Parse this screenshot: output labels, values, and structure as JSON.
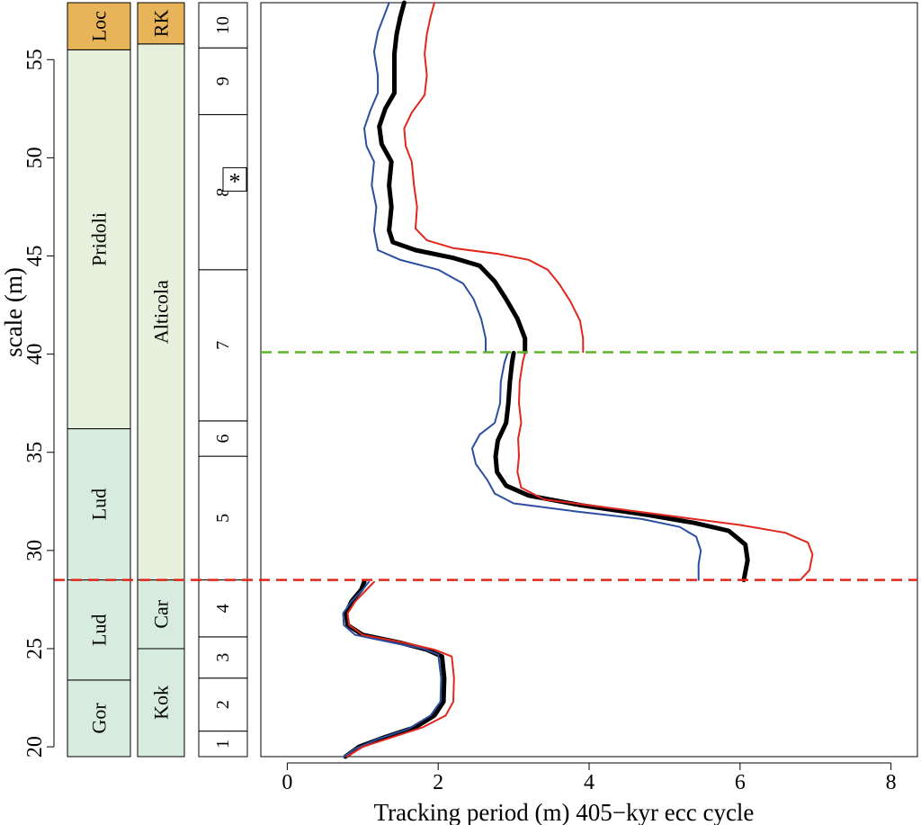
{
  "colors": {
    "loc_box": "#e7b45a",
    "pridoli_box": "#e6f0dd",
    "ludlow_box": "#d7ebdf",
    "trend_black": "#000000",
    "trend_blue": "#2b4ea0",
    "trend_red": "#e1261c",
    "line_red_dashed": "#e1261c",
    "line_green_dashed": "#5fb32d"
  },
  "chart_data": {
    "type": "line",
    "xlabel": "Tracking period (m) 405−kyr ecc cycle",
    "ylabel": "scale (m)",
    "xlim": [
      -0.35,
      8.35
    ],
    "ylim": [
      19.5,
      57.9
    ],
    "xticks": [
      "0",
      "2",
      "4",
      "6",
      "8"
    ],
    "yticks": [
      "20",
      "25",
      "30",
      "35",
      "40",
      "45",
      "50",
      "55"
    ],
    "xtick_values": [
      0,
      2,
      4,
      6,
      8
    ],
    "ytick_values": [
      20,
      25,
      30,
      35,
      40,
      45,
      50,
      55
    ],
    "grid": false,
    "reference_lines": [
      {
        "y": 28.5,
        "color": "red",
        "style": "dashed"
      },
      {
        "y": 40.1,
        "color": "green",
        "style": "dashed"
      }
    ],
    "columns": [
      {
        "units": [
          {
            "label": "Gor",
            "bottom": 19.5,
            "top": 23.4,
            "fill": "ludlow_box"
          },
          {
            "label": "Lud",
            "bottom": 23.4,
            "top": 28.5,
            "fill": "ludlow_box"
          },
          {
            "label": "Lud",
            "bottom": 28.5,
            "top": 36.2,
            "fill": "ludlow_box"
          },
          {
            "label": "Pridoli",
            "bottom": 36.2,
            "top": 55.5,
            "fill": "pridoli_box"
          },
          {
            "label": "Loc",
            "bottom": 55.5,
            "top": 57.9,
            "fill": "loc_box"
          }
        ]
      },
      {
        "units": [
          {
            "label": "Kok",
            "bottom": 19.5,
            "top": 25.0,
            "fill": "ludlow_box"
          },
          {
            "label": "Car",
            "bottom": 25.0,
            "top": 28.5,
            "fill": "ludlow_box"
          },
          {
            "label": "Alticola",
            "bottom": 28.5,
            "top": 55.8,
            "fill": "pridoli_box"
          },
          {
            "label": "RK",
            "bottom": 55.8,
            "top": 57.9,
            "fill": "loc_box"
          }
        ]
      },
      {
        "units": [
          {
            "label": "1",
            "bottom": 19.5,
            "top": 20.8
          },
          {
            "label": "2",
            "bottom": 20.8,
            "top": 23.5
          },
          {
            "label": "3",
            "bottom": 23.5,
            "top": 25.6
          },
          {
            "label": "4",
            "bottom": 25.6,
            "top": 28.5
          },
          {
            "label": "5",
            "bottom": 28.5,
            "top": 34.8
          },
          {
            "label": "6",
            "bottom": 34.8,
            "top": 36.6
          },
          {
            "label": "7",
            "bottom": 36.6,
            "top": 44.3
          },
          {
            "label": "8",
            "bottom": 44.3,
            "top": 52.2
          },
          {
            "label": "9",
            "bottom": 52.2,
            "top": 55.6
          },
          {
            "label": "10",
            "bottom": 55.6,
            "top": 57.9
          }
        ],
        "marker": {
          "label": "*",
          "y": 48.9
        }
      }
    ],
    "series": [
      {
        "color": "black",
        "width": 5,
        "segments": [
          [
            [
              0.77,
              19.5
            ],
            [
              0.95,
              20.0
            ],
            [
              1.3,
              20.5
            ],
            [
              1.7,
              21.0
            ],
            [
              1.95,
              21.6
            ],
            [
              2.07,
              22.3
            ],
            [
              2.08,
              23.5
            ],
            [
              2.05,
              24.6
            ],
            [
              1.85,
              24.95
            ],
            [
              1.5,
              25.3
            ],
            [
              1.0,
              25.7
            ],
            [
              0.8,
              26.2
            ],
            [
              0.78,
              26.8
            ],
            [
              0.85,
              27.4
            ],
            [
              0.98,
              28.0
            ],
            [
              1.02,
              28.4
            ]
          ],
          [
            [
              6.05,
              28.5
            ],
            [
              6.1,
              29.5
            ],
            [
              6.07,
              30.3
            ],
            [
              5.85,
              31.0
            ],
            [
              5.4,
              31.4
            ],
            [
              4.8,
              31.8
            ],
            [
              3.9,
              32.3
            ],
            [
              3.2,
              32.8
            ],
            [
              2.9,
              33.3
            ],
            [
              2.78,
              34.0
            ],
            [
              2.76,
              34.8
            ],
            [
              2.79,
              35.6
            ],
            [
              2.9,
              36.5
            ],
            [
              2.93,
              37.5
            ],
            [
              2.95,
              38.6
            ],
            [
              2.98,
              39.6
            ],
            [
              3.0,
              40.05
            ]
          ],
          [
            [
              3.15,
              40.1
            ],
            [
              3.15,
              40.8
            ],
            [
              3.05,
              41.8
            ],
            [
              2.9,
              42.8
            ],
            [
              2.75,
              43.7
            ],
            [
              2.55,
              44.5
            ],
            [
              2.2,
              44.9
            ],
            [
              1.7,
              45.3
            ],
            [
              1.4,
              45.7
            ],
            [
              1.35,
              46.3
            ],
            [
              1.38,
              47.5
            ],
            [
              1.35,
              48.6
            ],
            [
              1.38,
              49.8
            ],
            [
              1.25,
              50.7
            ],
            [
              1.22,
              51.6
            ],
            [
              1.3,
              52.5
            ],
            [
              1.42,
              53.3
            ],
            [
              1.42,
              54.2
            ],
            [
              1.42,
              55.3
            ],
            [
              1.45,
              56.3
            ],
            [
              1.5,
              57.2
            ],
            [
              1.55,
              57.9
            ]
          ]
        ]
      },
      {
        "color": "blue",
        "width": 2,
        "segments": [
          [
            [
              0.75,
              19.5
            ],
            [
              0.9,
              19.9
            ],
            [
              1.2,
              20.4
            ],
            [
              1.6,
              20.9
            ],
            [
              1.9,
              21.6
            ],
            [
              2.03,
              22.3
            ],
            [
              2.04,
              23.5
            ],
            [
              2.0,
              24.7
            ],
            [
              1.8,
              25.0
            ],
            [
              1.4,
              25.3
            ],
            [
              0.9,
              25.7
            ],
            [
              0.75,
              26.2
            ],
            [
              0.74,
              26.8
            ],
            [
              0.85,
              27.4
            ],
            [
              1.0,
              28.0
            ],
            [
              1.08,
              28.4
            ]
          ],
          [
            [
              5.45,
              28.5
            ],
            [
              5.45,
              29.3
            ],
            [
              5.48,
              30.0
            ],
            [
              5.42,
              30.7
            ],
            [
              5.2,
              31.2
            ],
            [
              4.7,
              31.6
            ],
            [
              3.8,
              32.0
            ],
            [
              3.0,
              32.4
            ],
            [
              2.75,
              32.9
            ],
            [
              2.65,
              33.6
            ],
            [
              2.5,
              34.4
            ],
            [
              2.45,
              35.2
            ],
            [
              2.55,
              35.9
            ],
            [
              2.75,
              36.5
            ],
            [
              2.82,
              37.5
            ],
            [
              2.83,
              38.6
            ],
            [
              2.88,
              39.6
            ],
            [
              2.92,
              40.05
            ]
          ],
          [
            [
              2.63,
              40.1
            ],
            [
              2.63,
              40.8
            ],
            [
              2.57,
              41.8
            ],
            [
              2.47,
              42.8
            ],
            [
              2.33,
              43.6
            ],
            [
              2.0,
              44.3
            ],
            [
              1.5,
              44.8
            ],
            [
              1.2,
              45.3
            ],
            [
              1.15,
              46.3
            ],
            [
              1.18,
              47.5
            ],
            [
              1.12,
              48.6
            ],
            [
              1.15,
              49.8
            ],
            [
              1.05,
              50.6
            ],
            [
              1.02,
              51.5
            ],
            [
              1.1,
              52.4
            ],
            [
              1.2,
              53.3
            ],
            [
              1.2,
              54.2
            ],
            [
              1.15,
              55.4
            ],
            [
              1.2,
              56.4
            ],
            [
              1.28,
              57.2
            ],
            [
              1.35,
              57.9
            ]
          ]
        ]
      },
      {
        "color": "red",
        "width": 2,
        "segments": [
          [
            [
              0.79,
              19.5
            ],
            [
              1.0,
              20.0
            ],
            [
              1.4,
              20.5
            ],
            [
              1.8,
              21.0
            ],
            [
              2.1,
              21.6
            ],
            [
              2.2,
              22.3
            ],
            [
              2.21,
              23.5
            ],
            [
              2.18,
              24.6
            ],
            [
              1.95,
              24.95
            ],
            [
              1.55,
              25.3
            ],
            [
              1.0,
              25.7
            ],
            [
              0.82,
              26.2
            ],
            [
              0.8,
              26.8
            ],
            [
              0.9,
              27.4
            ],
            [
              1.05,
              28.0
            ],
            [
              1.15,
              28.4
            ]
          ],
          [
            [
              6.8,
              28.5
            ],
            [
              6.92,
              29.0
            ],
            [
              6.96,
              29.8
            ],
            [
              6.9,
              30.4
            ],
            [
              6.6,
              30.9
            ],
            [
              6.0,
              31.3
            ],
            [
              5.2,
              31.7
            ],
            [
              4.2,
              32.2
            ],
            [
              3.4,
              32.6
            ],
            [
              3.1,
              33.2
            ],
            [
              3.05,
              34.0
            ],
            [
              3.07,
              34.8
            ],
            [
              3.06,
              35.7
            ],
            [
              3.1,
              36.5
            ],
            [
              3.07,
              37.5
            ],
            [
              3.08,
              38.6
            ],
            [
              3.12,
              39.6
            ],
            [
              3.15,
              40.05
            ]
          ],
          [
            [
              3.92,
              40.1
            ],
            [
              3.92,
              40.8
            ],
            [
              3.88,
              41.7
            ],
            [
              3.75,
              42.7
            ],
            [
              3.6,
              43.6
            ],
            [
              3.45,
              44.3
            ],
            [
              3.2,
              44.8
            ],
            [
              2.8,
              45.1
            ],
            [
              2.2,
              45.4
            ],
            [
              1.85,
              45.8
            ],
            [
              1.7,
              46.4
            ],
            [
              1.72,
              47.5
            ],
            [
              1.68,
              48.6
            ],
            [
              1.65,
              49.8
            ],
            [
              1.57,
              50.6
            ],
            [
              1.55,
              51.5
            ],
            [
              1.65,
              52.3
            ],
            [
              1.82,
              53.2
            ],
            [
              1.85,
              54.2
            ],
            [
              1.82,
              55.3
            ],
            [
              1.85,
              56.3
            ],
            [
              1.9,
              57.2
            ],
            [
              1.95,
              57.9
            ]
          ]
        ]
      }
    ]
  }
}
